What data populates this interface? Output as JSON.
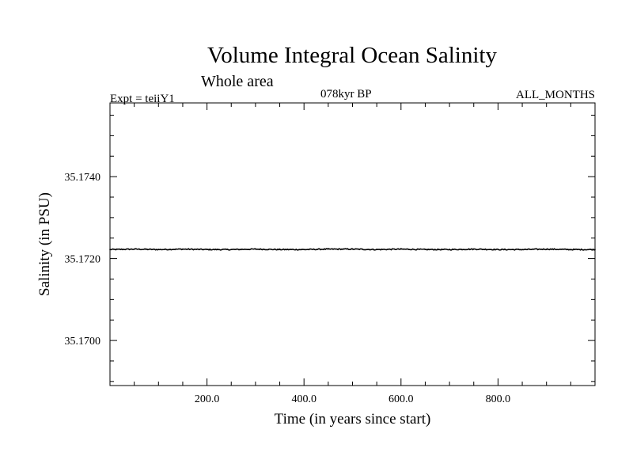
{
  "header": {
    "title": "Volume Integral Ocean Salinity",
    "subtitle": "Whole area",
    "experiment": "Expt = teiiY1",
    "period": "078kyr BP",
    "months": "ALL_MONTHS"
  },
  "chart_data": {
    "type": "line",
    "title": "Volume Integral Ocean Salinity",
    "subtitle": "Whole area",
    "xlabel": "Time (in years since start)",
    "ylabel": "Salinity (in PSU)",
    "xlim": [
      0,
      1000
    ],
    "ylim": [
      35.1689,
      35.1758
    ],
    "x_ticks": [
      200,
      400,
      600,
      800
    ],
    "x_tick_labels": [
      "200.0",
      "400.0",
      "600.0",
      "800.0"
    ],
    "y_ticks": [
      35.17,
      35.172,
      35.174
    ],
    "y_tick_labels": [
      "35.1700",
      "35.1720",
      "35.1740"
    ],
    "grid": false,
    "series": [
      {
        "color": "#000000",
        "x": [
          0,
          50,
          100,
          150,
          200,
          250,
          300,
          350,
          400,
          450,
          500,
          550,
          600,
          650,
          700,
          750,
          800,
          850,
          900,
          950,
          1000
        ],
        "values": [
          35.17222,
          35.17223,
          35.17222,
          35.17223,
          35.17222,
          35.17222,
          35.17223,
          35.17222,
          35.17222,
          35.17223,
          35.17223,
          35.17222,
          35.17223,
          35.17222,
          35.17222,
          35.17223,
          35.17222,
          35.17222,
          35.17223,
          35.17222,
          35.17222
        ]
      }
    ]
  }
}
